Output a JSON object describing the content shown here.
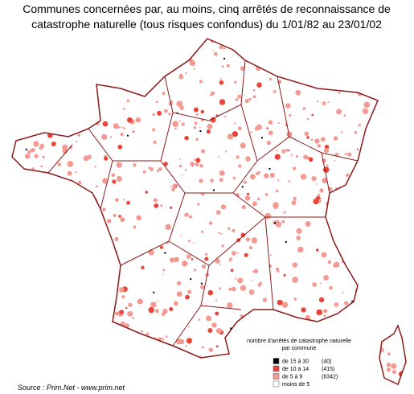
{
  "title": {
    "line1": "Communes concernées par, au moins, cinq arrêtés de reconnaissance de",
    "line2": "catastrophe naturelle (tous risques confondus) du 1/01/82 au 23/01/02"
  },
  "legend": {
    "title1": "nombre d'arrêtés de catastrophe naturelle",
    "title2": "par commune",
    "items": [
      {
        "label": "de 15 à 30",
        "count": "(40)"
      },
      {
        "label": "de 10 à 14",
        "count": "(415)"
      },
      {
        "label": "de 5 à 9",
        "count": "(6342)"
      },
      {
        "label": "moins de 5"
      }
    ]
  },
  "source": "Source : Prim.Net - www.prim.net"
}
